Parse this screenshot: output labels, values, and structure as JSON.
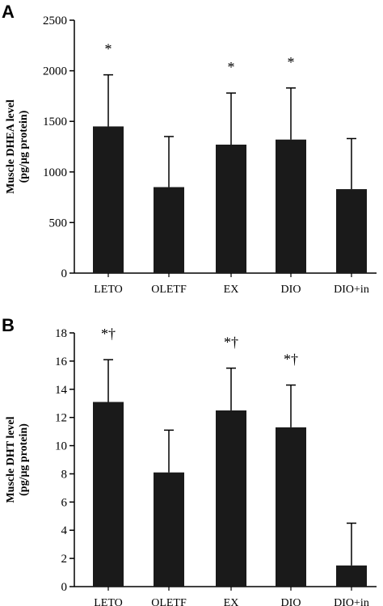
{
  "chart_data": [
    {
      "panel": "A",
      "type": "bar",
      "categories": [
        "LETO",
        "OLETF",
        "EX",
        "DIO",
        "DIO+in"
      ],
      "values": [
        1450,
        850,
        1270,
        1320,
        830
      ],
      "errors": [
        510,
        500,
        510,
        510,
        500
      ],
      "significance": [
        "*",
        "",
        "*",
        "*",
        ""
      ],
      "ylabel": [
        "Muscle DHEA level",
        "(pg/μg protein)"
      ],
      "ylim": [
        0,
        2500
      ],
      "yticks": [
        0,
        500,
        1000,
        1500,
        2000,
        2500
      ],
      "bar_color": "#1a1a1a"
    },
    {
      "panel": "B",
      "type": "bar",
      "categories": [
        "LETO",
        "OLETF",
        "EX",
        "DIO",
        "DIO+in"
      ],
      "values": [
        13.1,
        8.1,
        12.5,
        11.3,
        1.5
      ],
      "errors": [
        3.0,
        3.0,
        3.0,
        3.0,
        3.0
      ],
      "significance": [
        "*†",
        "",
        "*†",
        "*†",
        ""
      ],
      "ylabel": [
        "Muscle DHT level",
        "(pg/μg protein)"
      ],
      "ylim": [
        0,
        18
      ],
      "yticks": [
        0,
        2,
        4,
        6,
        8,
        10,
        12,
        14,
        16,
        18
      ],
      "bar_color": "#1a1a1a"
    }
  ]
}
